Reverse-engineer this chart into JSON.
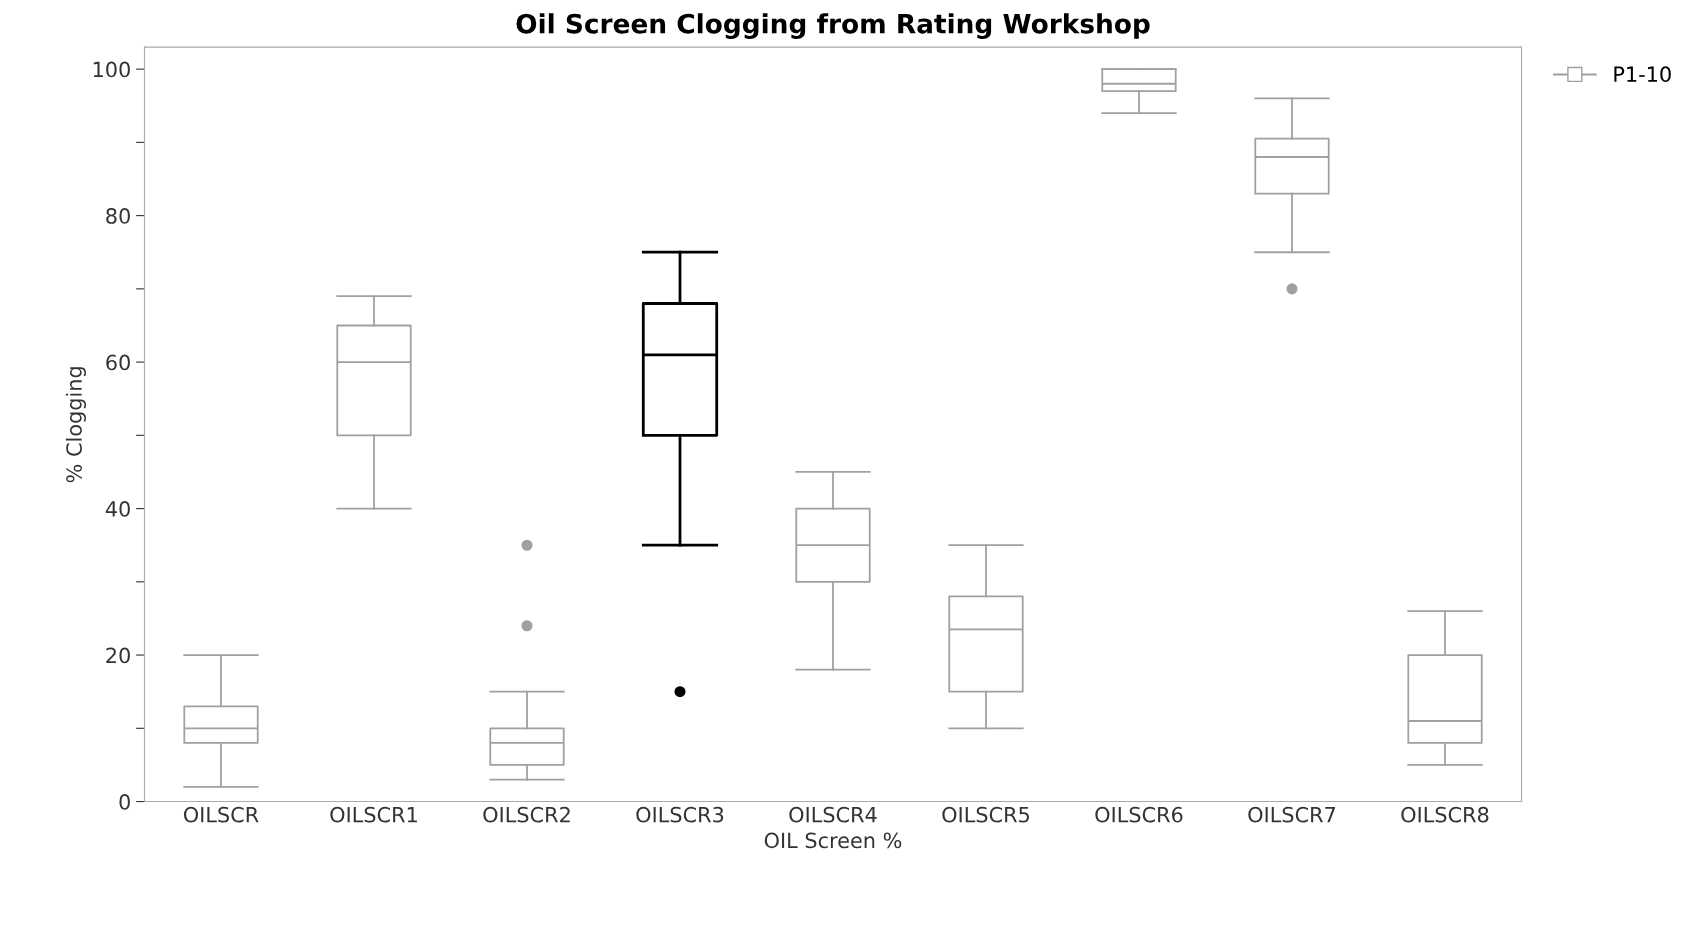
{
  "chart_data": {
    "type": "box",
    "title": "Oil Screen Clogging from Rating Workshop",
    "xlabel": "OIL Screen %",
    "ylabel": "% Clogging",
    "categories": [
      "OILSCR",
      "OILSCR1",
      "OILSCR2",
      "OILSCR3",
      "OILSCR4",
      "OILSCR5",
      "OILSCR6",
      "OILSCR7",
      "OILSCR8"
    ],
    "series": [
      {
        "name": "P1-10",
        "color": "#a0a0a0",
        "colors": [
          "#a0a0a0",
          "#a0a0a0",
          "#a0a0a0",
          "#000000",
          "#a0a0a0",
          "#a0a0a0",
          "#a0a0a0",
          "#a0a0a0",
          "#a0a0a0"
        ],
        "boxes": [
          {
            "low": 2,
            "q1": 8,
            "median": 10,
            "q3": 13,
            "high": 20
          },
          {
            "low": 40,
            "q1": 50,
            "median": 60,
            "q3": 65,
            "high": 69
          },
          {
            "low": 3,
            "q1": 5,
            "median": 8,
            "q3": 10,
            "high": 15,
            "outliers": [
              24,
              35
            ]
          },
          {
            "low": 35,
            "q1": 50,
            "median": 61,
            "q3": 68,
            "high": 75,
            "outliers": [
              15
            ]
          },
          {
            "low": 18,
            "q1": 30,
            "median": 35,
            "q3": 40,
            "high": 45
          },
          {
            "low": 10,
            "q1": 15,
            "median": 23.5,
            "q3": 28,
            "high": 35
          },
          {
            "low": 94,
            "q1": 97,
            "median": 98,
            "q3": 100,
            "high": 100
          },
          {
            "low": 75,
            "q1": 83,
            "median": 88,
            "q3": 90.5,
            "high": 96,
            "outliers": [
              70
            ]
          },
          {
            "low": 5,
            "q1": 8,
            "median": 11,
            "q3": 20,
            "high": 26
          }
        ]
      }
    ],
    "ylim": [
      0,
      103
    ],
    "yticks": [
      0,
      {
        "value": 10,
        "label": null
      },
      20,
      {
        "value": 30,
        "label": null
      },
      40,
      {
        "value": 50,
        "label": null
      },
      60,
      {
        "value": 70,
        "label": null
      },
      80,
      {
        "value": 90,
        "label": null
      },
      100
    ],
    "grid": false,
    "legend": "top right"
  }
}
